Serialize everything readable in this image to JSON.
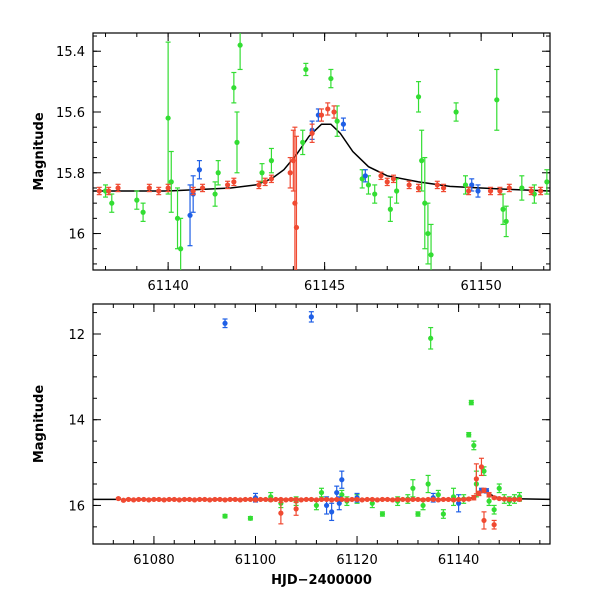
{
  "chart_data": [
    {
      "type": "scatter",
      "panel": "top",
      "title": "",
      "xlabel": "",
      "ylabel": "Magnitude",
      "xlim": [
        61137.6,
        61152.2
      ],
      "ylim": [
        16.12,
        15.34
      ],
      "y_inverted": true,
      "xticks": [
        61140,
        61145,
        61150
      ],
      "yticks": [
        15.4,
        15.6,
        15.8,
        16
      ],
      "ytick_labels": [
        "15.4",
        "15.6",
        "15.8",
        "16"
      ],
      "model_curve": {
        "name": "model",
        "color": "#000000",
        "x": [
          61137.6,
          61139,
          61140,
          61141,
          61142,
          61142.8,
          61143.3,
          61143.7,
          61144.1,
          61144.5,
          61144.9,
          61145.2,
          61145.5,
          61145.9,
          61146.4,
          61147,
          61148,
          61149,
          61150,
          61151,
          61152.2
        ],
        "y": [
          15.86,
          15.86,
          15.86,
          15.855,
          15.85,
          15.84,
          15.82,
          15.79,
          15.74,
          15.68,
          15.64,
          15.64,
          15.67,
          15.73,
          15.78,
          15.81,
          15.83,
          15.845,
          15.85,
          15.855,
          15.86
        ]
      },
      "series": [
        {
          "name": "red",
          "color": "#f04a32",
          "x": [
            61137.8,
            61138.1,
            61138.4,
            61139.4,
            61139.7,
            61140.0,
            61140.8,
            61141.1,
            61141.9,
            61142.1,
            61142.9,
            61143.1,
            61143.3,
            61143.9,
            61144.0,
            61144.05,
            61144.1,
            61144.6,
            61144.9,
            61145.1,
            61145.3,
            61146.8,
            61147.0,
            61147.2,
            61147.7,
            61148.0,
            61148.6,
            61148.8,
            61149.6,
            61150.3,
            61150.6,
            61150.9,
            61151.6,
            61151.9
          ],
          "y": [
            15.86,
            15.86,
            15.85,
            15.85,
            15.86,
            15.85,
            15.86,
            15.85,
            15.84,
            15.83,
            15.84,
            15.83,
            15.82,
            15.8,
            15.76,
            15.9,
            15.98,
            15.67,
            15.61,
            15.59,
            15.6,
            15.81,
            15.83,
            15.82,
            15.84,
            15.85,
            15.84,
            15.85,
            15.86,
            15.86,
            15.86,
            15.85,
            15.86,
            15.86
          ],
          "err": [
            0.012,
            0.012,
            0.012,
            0.012,
            0.012,
            0.012,
            0.012,
            0.012,
            0.012,
            0.012,
            0.012,
            0.012,
            0.012,
            0.05,
            0.1,
            0.25,
            0.3,
            0.03,
            0.02,
            0.02,
            0.02,
            0.012,
            0.012,
            0.012,
            0.012,
            0.012,
            0.012,
            0.012,
            0.012,
            0.012,
            0.012,
            0.012,
            0.012,
            0.012
          ]
        },
        {
          "name": "green",
          "color": "#33dd33",
          "x": [
            61138.0,
            61138.2,
            61139.0,
            61139.2,
            61140.0,
            61140.1,
            61140.3,
            61140.4,
            61141.5,
            61141.6,
            61142.1,
            61142.2,
            61142.3,
            61143.0,
            61143.3,
            61144.3,
            61144.4,
            61145.2,
            61145.4,
            61146.2,
            61146.4,
            61146.6,
            61147.1,
            61147.3,
            61148.0,
            61148.1,
            61148.2,
            61148.3,
            61148.4,
            61149.2,
            61149.5,
            61150.5,
            61150.7,
            61150.8,
            61151.3,
            61151.7,
            61152.1
          ],
          "y": [
            15.86,
            15.9,
            15.89,
            15.93,
            15.62,
            15.83,
            15.95,
            16.05,
            15.87,
            15.8,
            15.52,
            15.7,
            15.38,
            15.8,
            15.76,
            15.7,
            15.46,
            15.49,
            15.63,
            15.82,
            15.84,
            15.87,
            15.92,
            15.86,
            15.55,
            15.76,
            15.9,
            16.0,
            16.07,
            15.6,
            15.84,
            15.56,
            15.92,
            15.96,
            15.85,
            15.87,
            15.83
          ],
          "err": [
            0.02,
            0.03,
            0.03,
            0.03,
            0.25,
            0.1,
            0.1,
            0.1,
            0.04,
            0.04,
            0.05,
            0.1,
            0.08,
            0.03,
            0.04,
            0.04,
            0.02,
            0.03,
            0.05,
            0.03,
            0.03,
            0.03,
            0.04,
            0.04,
            0.05,
            0.1,
            0.15,
            0.1,
            0.1,
            0.03,
            0.03,
            0.1,
            0.05,
            0.05,
            0.04,
            0.03,
            0.04
          ]
        },
        {
          "name": "blue",
          "color": "#1f5fe6",
          "x": [
            61140.7,
            61140.8,
            61141.0,
            61144.6,
            61144.8,
            61145.6,
            61146.3,
            61149.7,
            61149.9
          ],
          "y": [
            15.94,
            15.87,
            15.79,
            15.66,
            15.61,
            15.64,
            15.81,
            15.84,
            15.86
          ],
          "err": [
            0.1,
            0.06,
            0.03,
            0.03,
            0.02,
            0.02,
            0.02,
            0.02,
            0.02
          ]
        }
      ]
    },
    {
      "type": "scatter",
      "panel": "bottom",
      "title": "",
      "xlabel": "HJD−2400000",
      "ylabel": "Magnitude",
      "xlim": [
        61068,
        61158
      ],
      "ylim": [
        16.9,
        11.3
      ],
      "y_inverted": true,
      "xticks": [
        61080,
        61100,
        61120,
        61140
      ],
      "yticks": [
        12,
        14,
        16
      ],
      "ytick_labels": [
        "12",
        "14",
        "16"
      ],
      "model_curve": {
        "name": "model",
        "color": "#000000",
        "x": [
          61068,
          61140,
          61142,
          61143.5,
          61144.5,
          61145.5,
          61147,
          61149,
          61158
        ],
        "y": [
          15.86,
          15.86,
          15.85,
          15.78,
          15.66,
          15.66,
          15.8,
          15.84,
          15.86
        ]
      },
      "series": [
        {
          "name": "red",
          "color": "#f04a32",
          "x": [
            61073,
            61074,
            61075,
            61076,
            61077,
            61078,
            61079,
            61080,
            61081,
            61082,
            61083,
            61084,
            61085,
            61086,
            61087,
            61088,
            61089,
            61090,
            61091,
            61092,
            61093,
            61094,
            61095,
            61096,
            61097,
            61098,
            61099,
            61100,
            61101,
            61102,
            61103,
            61104,
            61105,
            61106,
            61107,
            61108,
            61109,
            61110,
            61111,
            61112,
            61113,
            61114,
            61115,
            61116,
            61117,
            61118,
            61119,
            61120,
            61121,
            61122,
            61123,
            61124,
            61125,
            61126,
            61127,
            61128,
            61129,
            61130,
            61131,
            61132,
            61133,
            61134,
            61135,
            61136,
            61137,
            61138,
            61139,
            61140,
            61141,
            61142,
            61143,
            61144,
            61145,
            61146,
            61147,
            61148,
            61149,
            61150,
            61151,
            61152,
            61105,
            61108,
            61143.5,
            61144.5,
            61145,
            61147
          ],
          "y": [
            15.84,
            15.88,
            15.86,
            15.87,
            15.86,
            15.86,
            15.87,
            15.86,
            15.86,
            15.87,
            15.86,
            15.86,
            15.87,
            15.86,
            15.86,
            15.87,
            15.86,
            15.86,
            15.87,
            15.86,
            15.86,
            15.87,
            15.86,
            15.86,
            15.87,
            15.86,
            15.86,
            15.87,
            15.86,
            15.86,
            15.87,
            15.86,
            15.86,
            15.87,
            15.86,
            15.86,
            15.87,
            15.86,
            15.86,
            15.87,
            15.86,
            15.86,
            15.87,
            15.86,
            15.86,
            15.87,
            15.86,
            15.86,
            15.87,
            15.86,
            15.86,
            15.87,
            15.86,
            15.86,
            15.87,
            15.86,
            15.86,
            15.87,
            15.86,
            15.86,
            15.87,
            15.86,
            15.86,
            15.87,
            15.86,
            15.86,
            15.87,
            15.86,
            15.86,
            15.85,
            15.82,
            15.72,
            15.65,
            15.75,
            15.82,
            15.84,
            15.85,
            15.86,
            15.86,
            15.86,
            16.18,
            16.08,
            15.38,
            15.1,
            16.35,
            16.45
          ],
          "err": [
            0.02,
            0.02,
            0.02,
            0.02,
            0.02,
            0.02,
            0.02,
            0.02,
            0.02,
            0.02,
            0.02,
            0.02,
            0.02,
            0.02,
            0.02,
            0.02,
            0.02,
            0.02,
            0.02,
            0.02,
            0.02,
            0.02,
            0.02,
            0.02,
            0.02,
            0.02,
            0.02,
            0.02,
            0.02,
            0.02,
            0.02,
            0.02,
            0.02,
            0.02,
            0.02,
            0.02,
            0.02,
            0.02,
            0.02,
            0.02,
            0.02,
            0.02,
            0.02,
            0.02,
            0.02,
            0.02,
            0.02,
            0.02,
            0.02,
            0.02,
            0.02,
            0.02,
            0.02,
            0.02,
            0.02,
            0.02,
            0.02,
            0.02,
            0.02,
            0.02,
            0.02,
            0.02,
            0.02,
            0.02,
            0.02,
            0.02,
            0.02,
            0.02,
            0.02,
            0.03,
            0.05,
            0.05,
            0.05,
            0.05,
            0.03,
            0.02,
            0.02,
            0.02,
            0.02,
            0.02,
            0.25,
            0.15,
            0.35,
            0.2,
            0.2,
            0.1
          ]
        },
        {
          "name": "green",
          "color": "#33dd33",
          "x": [
            61094,
            61099,
            61103,
            61105,
            61108,
            61112,
            61113,
            61117,
            61118,
            61120,
            61123,
            61125,
            61128,
            61130,
            61131,
            61132,
            61133,
            61134,
            61134.5,
            61136,
            61137,
            61139,
            61141,
            61142,
            61142.5,
            61143,
            61143.5,
            61145,
            61146,
            61147,
            61148,
            61149,
            61150,
            61151,
            61152
          ],
          "y": [
            16.25,
            16.3,
            15.8,
            15.95,
            15.9,
            16.0,
            15.7,
            15.75,
            15.9,
            15.85,
            15.95,
            16.2,
            15.9,
            15.85,
            15.6,
            16.2,
            16.0,
            15.5,
            12.1,
            15.75,
            16.2,
            15.8,
            15.85,
            14.35,
            13.6,
            14.6,
            15.5,
            15.2,
            15.9,
            16.1,
            15.6,
            15.85,
            15.9,
            15.85,
            15.8
          ],
          "err": [
            0.04,
            0.04,
            0.1,
            0.1,
            0.1,
            0.1,
            0.1,
            0.1,
            0.1,
            0.1,
            0.1,
            0.05,
            0.1,
            0.1,
            0.2,
            0.05,
            0.1,
            0.2,
            0.25,
            0.1,
            0.1,
            0.2,
            0.1,
            0.05,
            0.05,
            0.1,
            0.3,
            0.1,
            0.1,
            0.1,
            0.1,
            0.1,
            0.1,
            0.1,
            0.1
          ]
        },
        {
          "name": "blue",
          "color": "#1f5fe6",
          "x": [
            61094,
            61111,
            61114,
            61115,
            61116,
            61116.5,
            61117,
            61100,
            61120,
            61135,
            61140,
            61144.5,
            61145.5
          ],
          "y": [
            11.75,
            11.6,
            16.0,
            16.15,
            15.7,
            15.95,
            15.4,
            15.82,
            15.82,
            15.82,
            15.95,
            15.65,
            15.66
          ],
          "err": [
            0.1,
            0.12,
            0.2,
            0.2,
            0.15,
            0.15,
            0.2,
            0.1,
            0.1,
            0.1,
            0.2,
            0.05,
            0.05
          ]
        }
      ]
    }
  ]
}
